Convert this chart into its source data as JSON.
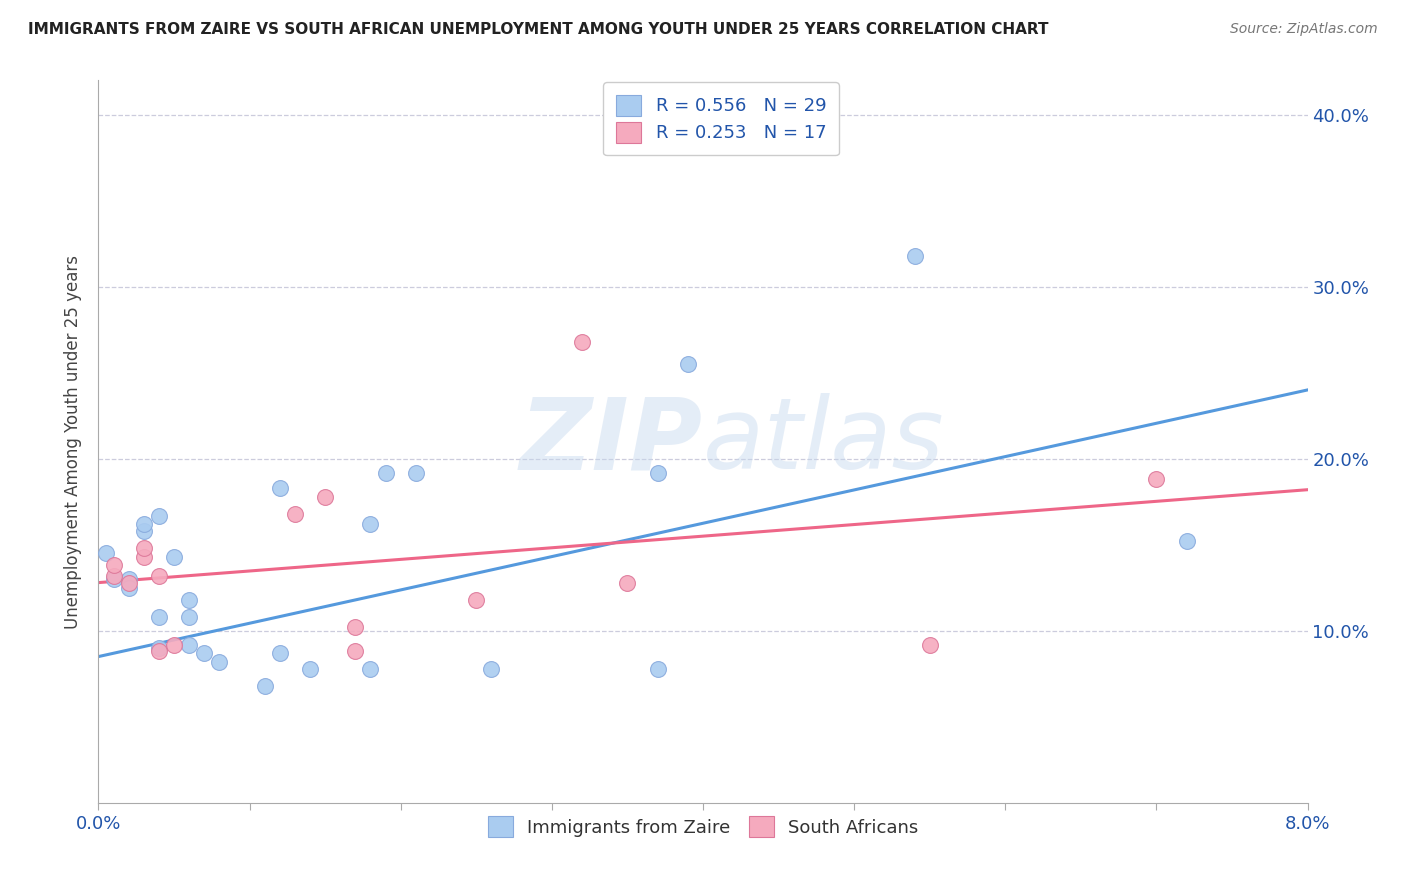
{
  "title": "IMMIGRANTS FROM ZAIRE VS SOUTH AFRICAN UNEMPLOYMENT AMONG YOUTH UNDER 25 YEARS CORRELATION CHART",
  "source": "Source: ZipAtlas.com",
  "ylabel": "Unemployment Among Youth under 25 years",
  "xlim": [
    0.0,
    0.08
  ],
  "ylim": [
    0.0,
    0.42
  ],
  "xticks": [
    0.0,
    0.01,
    0.02,
    0.03,
    0.04,
    0.05,
    0.06,
    0.07,
    0.08
  ],
  "xticklabels": [
    "0.0%",
    "",
    "",
    "",
    "",
    "",
    "",
    "",
    "8.0%"
  ],
  "yticks": [
    0.0,
    0.1,
    0.2,
    0.3,
    0.4
  ],
  "yticklabels": [
    "",
    "10.0%",
    "20.0%",
    "30.0%",
    "40.0%"
  ],
  "blue_scatter_x": [
    0.0005,
    0.001,
    0.002,
    0.002,
    0.003,
    0.003,
    0.004,
    0.004,
    0.004,
    0.005,
    0.006,
    0.006,
    0.006,
    0.007,
    0.008,
    0.011,
    0.012,
    0.012,
    0.014,
    0.018,
    0.018,
    0.019,
    0.021,
    0.026,
    0.037,
    0.037,
    0.039,
    0.054,
    0.072
  ],
  "blue_scatter_y": [
    0.145,
    0.13,
    0.13,
    0.125,
    0.158,
    0.162,
    0.108,
    0.09,
    0.167,
    0.143,
    0.092,
    0.118,
    0.108,
    0.087,
    0.082,
    0.068,
    0.087,
    0.183,
    0.078,
    0.078,
    0.162,
    0.192,
    0.192,
    0.078,
    0.078,
    0.192,
    0.255,
    0.318,
    0.152
  ],
  "pink_scatter_x": [
    0.001,
    0.001,
    0.002,
    0.003,
    0.003,
    0.004,
    0.004,
    0.005,
    0.013,
    0.015,
    0.017,
    0.017,
    0.025,
    0.032,
    0.035,
    0.055,
    0.07
  ],
  "pink_scatter_y": [
    0.132,
    0.138,
    0.128,
    0.143,
    0.148,
    0.132,
    0.088,
    0.092,
    0.168,
    0.178,
    0.102,
    0.088,
    0.118,
    0.268,
    0.128,
    0.092,
    0.188
  ],
  "blue_line_x": [
    0.0,
    0.08
  ],
  "blue_line_y": [
    0.085,
    0.24
  ],
  "pink_line_x": [
    0.0,
    0.08
  ],
  "pink_line_y": [
    0.128,
    0.182
  ],
  "blue_color": "#aaccf0",
  "blue_line_color": "#5599dd",
  "pink_color": "#f5aabe",
  "pink_line_color": "#ee6688",
  "blue_edge_color": "#88aadd",
  "pink_edge_color": "#dd7799",
  "scatter_size": 130,
  "legend_R_blue": "R = 0.556",
  "legend_N_blue": "N = 29",
  "legend_R_pink": "R = 0.253",
  "legend_N_pink": "N = 17",
  "watermark_zip": "ZIP",
  "watermark_atlas": "atlas",
  "background_color": "#ffffff",
  "grid_color": "#ccccdd",
  "legend_text_color": "#2255aa",
  "bottom_legend_labels": [
    "Immigrants from Zaire",
    "South Africans"
  ]
}
